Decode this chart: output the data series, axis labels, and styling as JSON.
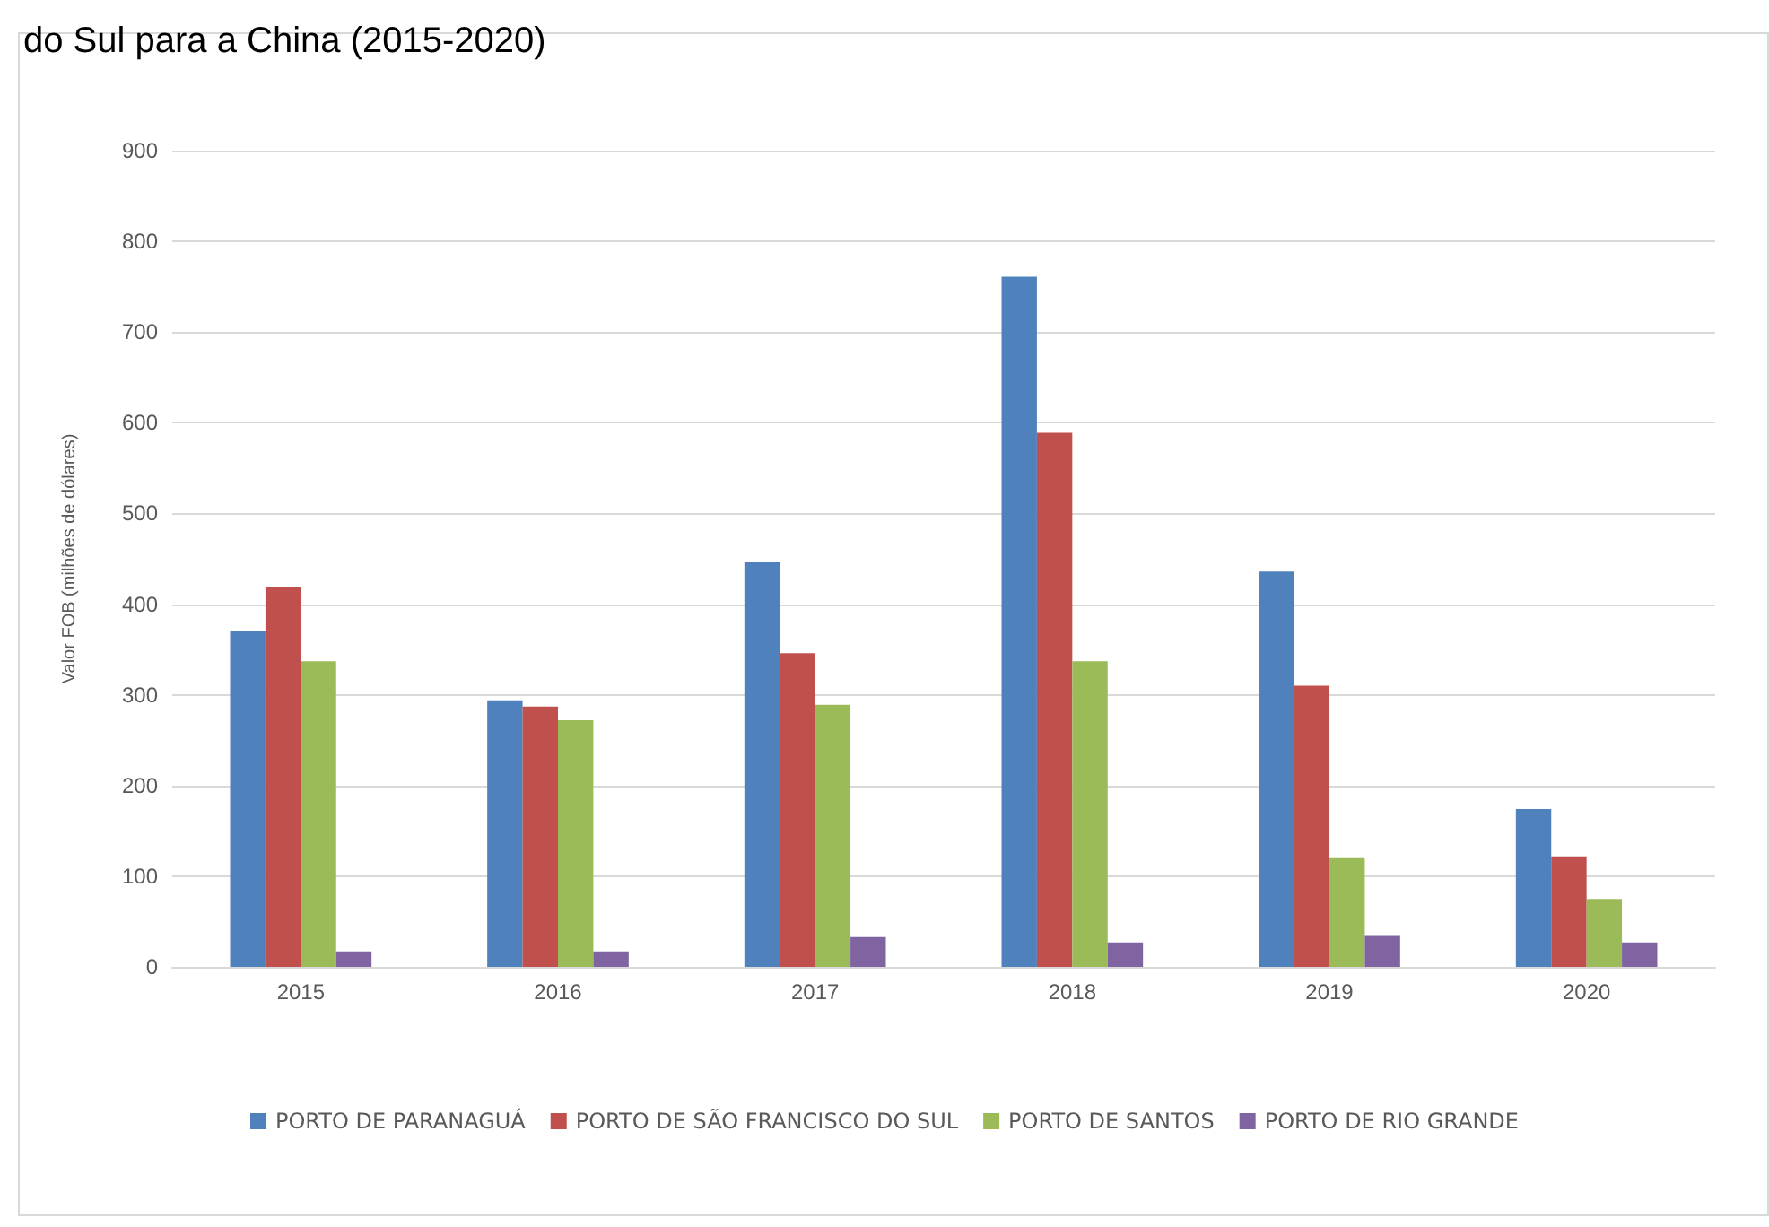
{
  "chart_data": {
    "type": "bar",
    "title": "do Sul para a China (2015-2020)",
    "ylabel": "Valor FOB (milhões de dólares)",
    "categories": [
      "2015",
      "2016",
      "2017",
      "2018",
      "2019",
      "2020"
    ],
    "series": [
      {
        "name": "PORTO DE PARANAGUÁ",
        "color": "#4f81bd",
        "values": [
          371,
          294,
          446,
          761,
          436,
          174
        ]
      },
      {
        "name": "PORTO DE SÃO FRANCISCO DO SUL",
        "color": "#c0504d",
        "values": [
          419,
          287,
          346,
          589,
          310,
          122
        ]
      },
      {
        "name": "PORTO DE SANTOS",
        "color": "#9bbb59",
        "values": [
          337,
          272,
          289,
          337,
          120,
          75
        ]
      },
      {
        "name": "PORTO DE RIO GRANDE",
        "color": "#8064a2",
        "values": [
          17,
          17,
          33,
          27,
          34,
          27
        ]
      }
    ],
    "ylim": [
      0,
      900
    ],
    "yticks": [
      0,
      100,
      200,
      300,
      400,
      500,
      600,
      700,
      800,
      900
    ],
    "grid": "y",
    "legend": "bottom"
  }
}
